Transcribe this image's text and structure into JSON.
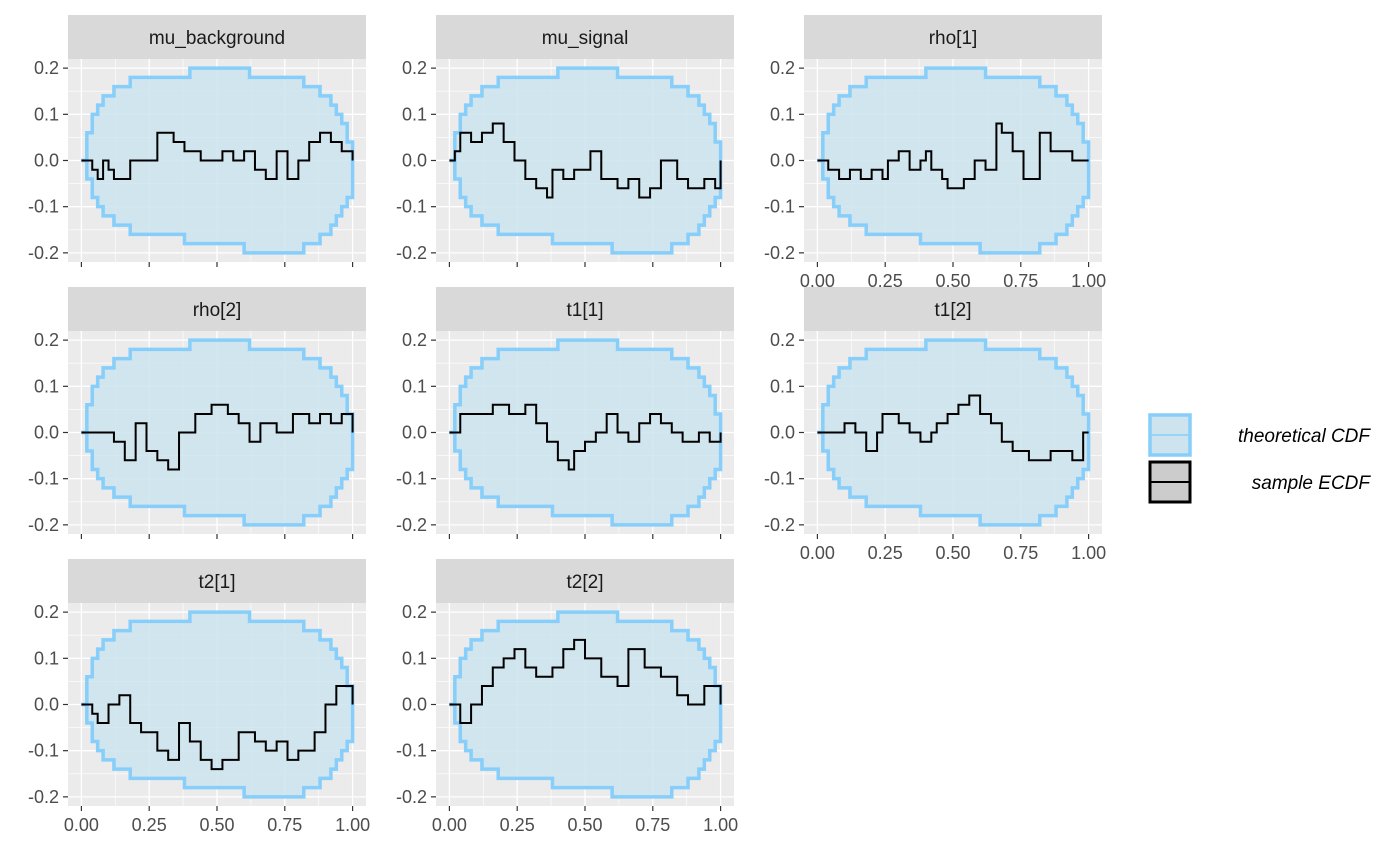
{
  "colors": {
    "band_fill": "#cde4ef",
    "band_line": "#87cefa",
    "ecdf_line": "#000000",
    "panel_bg": "#ebebeb",
    "strip_bg": "#d9d9d9",
    "grid": "#ffffff"
  },
  "legend": {
    "entries": [
      {
        "label": "theoretical CDF",
        "style": "band"
      },
      {
        "label": "sample ECDF",
        "style": "line"
      }
    ],
    "position": "right"
  },
  "chart_data": {
    "type": "line",
    "layout": "facet_wrap 3 columns, shared axes",
    "xlim": [
      0,
      1
    ],
    "ylim": [
      -0.2,
      0.2
    ],
    "x_ticks": [
      "0.00",
      "0.25",
      "0.50",
      "0.75",
      "1.00"
    ],
    "y_ticks": [
      "0.2",
      "0.1",
      "0.0",
      "-0.1",
      "-0.2"
    ],
    "y_tick_values": [
      0.2,
      0.1,
      0.0,
      -0.1,
      -0.2
    ],
    "x_tick_values": [
      0,
      0.25,
      0.5,
      0.75,
      1
    ],
    "band": {
      "upper": [
        [
          0,
          0
        ],
        [
          0.02,
          0.06
        ],
        [
          0.04,
          0.1
        ],
        [
          0.06,
          0.12
        ],
        [
          0.08,
          0.14
        ],
        [
          0.12,
          0.16
        ],
        [
          0.18,
          0.18
        ],
        [
          0.4,
          0.2
        ],
        [
          0.62,
          0.18
        ],
        [
          0.82,
          0.16
        ],
        [
          0.88,
          0.14
        ],
        [
          0.92,
          0.12
        ],
        [
          0.94,
          0.1
        ],
        [
          0.96,
          0.08
        ],
        [
          0.98,
          0.04
        ],
        [
          1,
          0
        ]
      ],
      "lower": [
        [
          0,
          0
        ],
        [
          0.02,
          -0.04
        ],
        [
          0.04,
          -0.08
        ],
        [
          0.06,
          -0.1
        ],
        [
          0.08,
          -0.12
        ],
        [
          0.12,
          -0.14
        ],
        [
          0.18,
          -0.16
        ],
        [
          0.38,
          -0.18
        ],
        [
          0.6,
          -0.2
        ],
        [
          0.82,
          -0.18
        ],
        [
          0.88,
          -0.16
        ],
        [
          0.92,
          -0.14
        ],
        [
          0.94,
          -0.12
        ],
        [
          0.96,
          -0.1
        ],
        [
          0.98,
          -0.08
        ],
        [
          1,
          0
        ]
      ]
    },
    "panels": [
      {
        "label": "mu_background",
        "show_x_axis": false,
        "ecdf": [
          [
            0,
            0
          ],
          [
            0.04,
            -0.02
          ],
          [
            0.06,
            -0.04
          ],
          [
            0.08,
            0
          ],
          [
            0.1,
            -0.02
          ],
          [
            0.12,
            -0.04
          ],
          [
            0.18,
            0
          ],
          [
            0.28,
            0.06
          ],
          [
            0.34,
            0.04
          ],
          [
            0.38,
            0.02
          ],
          [
            0.44,
            0
          ],
          [
            0.52,
            0.02
          ],
          [
            0.56,
            0
          ],
          [
            0.6,
            0.02
          ],
          [
            0.64,
            -0.02
          ],
          [
            0.68,
            -0.04
          ],
          [
            0.72,
            0.02
          ],
          [
            0.76,
            -0.04
          ],
          [
            0.8,
            0
          ],
          [
            0.84,
            0.04
          ],
          [
            0.88,
            0.06
          ],
          [
            0.92,
            0.04
          ],
          [
            0.96,
            0.02
          ],
          [
            1,
            0
          ]
        ]
      },
      {
        "label": "mu_signal",
        "show_x_axis": false,
        "ecdf": [
          [
            0,
            0
          ],
          [
            0.02,
            0.02
          ],
          [
            0.04,
            0.06
          ],
          [
            0.08,
            0.04
          ],
          [
            0.12,
            0.06
          ],
          [
            0.16,
            0.08
          ],
          [
            0.2,
            0.04
          ],
          [
            0.24,
            0
          ],
          [
            0.28,
            -0.04
          ],
          [
            0.32,
            -0.06
          ],
          [
            0.36,
            -0.08
          ],
          [
            0.38,
            -0.02
          ],
          [
            0.42,
            -0.04
          ],
          [
            0.46,
            -0.02
          ],
          [
            0.52,
            0.02
          ],
          [
            0.56,
            -0.04
          ],
          [
            0.62,
            -0.06
          ],
          [
            0.66,
            -0.04
          ],
          [
            0.7,
            -0.08
          ],
          [
            0.74,
            -0.06
          ],
          [
            0.78,
            0
          ],
          [
            0.84,
            -0.04
          ],
          [
            0.88,
            -0.06
          ],
          [
            0.94,
            -0.04
          ],
          [
            0.98,
            -0.06
          ],
          [
            1,
            0
          ]
        ]
      },
      {
        "label": "rho[1]",
        "show_x_axis": true,
        "ecdf": [
          [
            0,
            0
          ],
          [
            0.04,
            -0.02
          ],
          [
            0.08,
            -0.04
          ],
          [
            0.12,
            -0.02
          ],
          [
            0.16,
            -0.04
          ],
          [
            0.2,
            -0.02
          ],
          [
            0.24,
            -0.04
          ],
          [
            0.26,
            0
          ],
          [
            0.3,
            0.02
          ],
          [
            0.34,
            -0.02
          ],
          [
            0.38,
            0
          ],
          [
            0.4,
            0.02
          ],
          [
            0.42,
            -0.02
          ],
          [
            0.46,
            -0.04
          ],
          [
            0.48,
            -0.06
          ],
          [
            0.54,
            -0.04
          ],
          [
            0.58,
            0
          ],
          [
            0.62,
            -0.02
          ],
          [
            0.66,
            0.08
          ],
          [
            0.68,
            0.06
          ],
          [
            0.72,
            0.02
          ],
          [
            0.76,
            -0.04
          ],
          [
            0.82,
            0.06
          ],
          [
            0.86,
            0.02
          ],
          [
            0.94,
            0
          ],
          [
            1,
            0
          ]
        ]
      },
      {
        "label": "rho[2]",
        "show_x_axis": false,
        "ecdf": [
          [
            0,
            0
          ],
          [
            0.06,
            0
          ],
          [
            0.12,
            -0.02
          ],
          [
            0.16,
            -0.06
          ],
          [
            0.2,
            0.02
          ],
          [
            0.24,
            -0.04
          ],
          [
            0.28,
            -0.06
          ],
          [
            0.32,
            -0.08
          ],
          [
            0.36,
            0
          ],
          [
            0.42,
            0.04
          ],
          [
            0.48,
            0.06
          ],
          [
            0.54,
            0.04
          ],
          [
            0.58,
            0.02
          ],
          [
            0.62,
            -0.02
          ],
          [
            0.66,
            0.02
          ],
          [
            0.72,
            0
          ],
          [
            0.78,
            0.04
          ],
          [
            0.84,
            0.02
          ],
          [
            0.88,
            0.04
          ],
          [
            0.92,
            0.02
          ],
          [
            0.96,
            0.04
          ],
          [
            1,
            0
          ]
        ]
      },
      {
        "label": "t1[1]",
        "show_x_axis": false,
        "ecdf": [
          [
            0,
            0
          ],
          [
            0.04,
            0.04
          ],
          [
            0.16,
            0.06
          ],
          [
            0.22,
            0.04
          ],
          [
            0.28,
            0.06
          ],
          [
            0.32,
            0.02
          ],
          [
            0.36,
            -0.02
          ],
          [
            0.4,
            -0.06
          ],
          [
            0.44,
            -0.08
          ],
          [
            0.46,
            -0.04
          ],
          [
            0.5,
            -0.02
          ],
          [
            0.54,
            0
          ],
          [
            0.58,
            0.04
          ],
          [
            0.62,
            0
          ],
          [
            0.66,
            -0.02
          ],
          [
            0.7,
            0.02
          ],
          [
            0.74,
            0.04
          ],
          [
            0.78,
            0.02
          ],
          [
            0.82,
            0
          ],
          [
            0.86,
            -0.02
          ],
          [
            0.92,
            0
          ],
          [
            0.96,
            -0.02
          ],
          [
            1,
            0
          ]
        ]
      },
      {
        "label": "t1[2]",
        "show_x_axis": true,
        "ecdf": [
          [
            0,
            0
          ],
          [
            0.1,
            0.02
          ],
          [
            0.14,
            0
          ],
          [
            0.18,
            -0.04
          ],
          [
            0.22,
            0
          ],
          [
            0.24,
            0.04
          ],
          [
            0.3,
            0.02
          ],
          [
            0.34,
            0
          ],
          [
            0.38,
            -0.02
          ],
          [
            0.42,
            0
          ],
          [
            0.44,
            0.02
          ],
          [
            0.48,
            0.04
          ],
          [
            0.52,
            0.06
          ],
          [
            0.56,
            0.08
          ],
          [
            0.6,
            0.04
          ],
          [
            0.64,
            0.02
          ],
          [
            0.68,
            -0.02
          ],
          [
            0.72,
            -0.04
          ],
          [
            0.78,
            -0.06
          ],
          [
            0.86,
            -0.04
          ],
          [
            0.94,
            -0.06
          ],
          [
            0.98,
            0
          ],
          [
            1,
            0
          ]
        ]
      },
      {
        "label": "t2[1]",
        "show_x_axis": true,
        "ecdf": [
          [
            0,
            0
          ],
          [
            0.04,
            -0.02
          ],
          [
            0.06,
            -0.04
          ],
          [
            0.1,
            0
          ],
          [
            0.14,
            0.02
          ],
          [
            0.18,
            -0.04
          ],
          [
            0.22,
            -0.06
          ],
          [
            0.28,
            -0.1
          ],
          [
            0.32,
            -0.12
          ],
          [
            0.36,
            -0.04
          ],
          [
            0.4,
            -0.08
          ],
          [
            0.44,
            -0.12
          ],
          [
            0.48,
            -0.14
          ],
          [
            0.52,
            -0.12
          ],
          [
            0.58,
            -0.06
          ],
          [
            0.64,
            -0.08
          ],
          [
            0.68,
            -0.1
          ],
          [
            0.72,
            -0.08
          ],
          [
            0.76,
            -0.12
          ],
          [
            0.8,
            -0.1
          ],
          [
            0.86,
            -0.06
          ],
          [
            0.9,
            0
          ],
          [
            0.94,
            0.04
          ],
          [
            1,
            0
          ]
        ]
      },
      {
        "label": "t2[2]",
        "show_x_axis": true,
        "ecdf": [
          [
            0,
            0
          ],
          [
            0.04,
            -0.04
          ],
          [
            0.08,
            0
          ],
          [
            0.12,
            0.04
          ],
          [
            0.16,
            0.08
          ],
          [
            0.2,
            0.1
          ],
          [
            0.24,
            0.12
          ],
          [
            0.28,
            0.08
          ],
          [
            0.32,
            0.06
          ],
          [
            0.38,
            0.08
          ],
          [
            0.42,
            0.12
          ],
          [
            0.46,
            0.14
          ],
          [
            0.5,
            0.1
          ],
          [
            0.56,
            0.06
          ],
          [
            0.62,
            0.04
          ],
          [
            0.66,
            0.12
          ],
          [
            0.72,
            0.08
          ],
          [
            0.78,
            0.06
          ],
          [
            0.84,
            0.02
          ],
          [
            0.88,
            0
          ],
          [
            0.94,
            0.04
          ],
          [
            1,
            0
          ]
        ]
      }
    ]
  }
}
